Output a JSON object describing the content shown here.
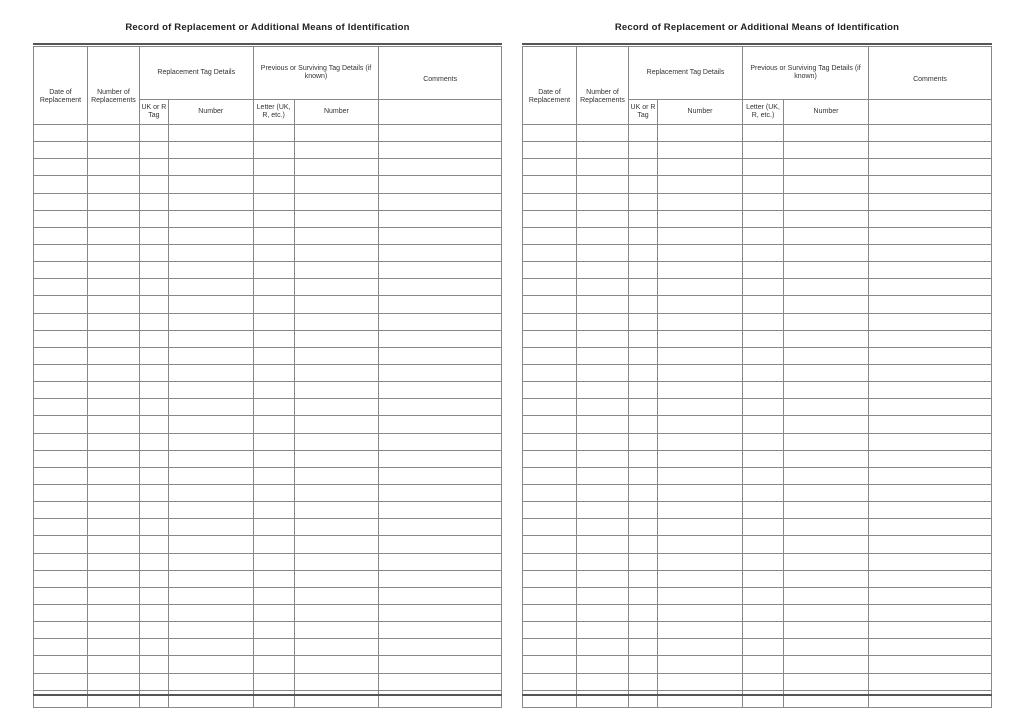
{
  "pages": [
    {
      "title": "Record of Replacement or Additional Means of Identification",
      "headers": {
        "date": "Date of Replacement",
        "number_of_replacements": "Number of Replacements",
        "replacement_group": "Replacement Tag Details",
        "uk_or_r_tag": "UK or R Tag",
        "replacement_number": "Number",
        "previous_group": "Previous or Surviving Tag Details (if known)",
        "letter": "Letter (UK, R, etc.)",
        "previous_number": "Number",
        "comments": "Comments"
      }
    },
    {
      "title": "Record of Replacement or Additional Means of Identification",
      "headers": {
        "date": "Date of Replacement",
        "number_of_replacements": "Number of Replacements",
        "replacement_group": "Replacement Tag Details",
        "uk_or_r_tag": "UK or R Tag",
        "replacement_number": "Number",
        "previous_group": "Previous or Surviving Tag Details (if known)",
        "letter": "Letter (UK, R, etc.)",
        "previous_number": "Number",
        "comments": "Comments"
      }
    }
  ]
}
